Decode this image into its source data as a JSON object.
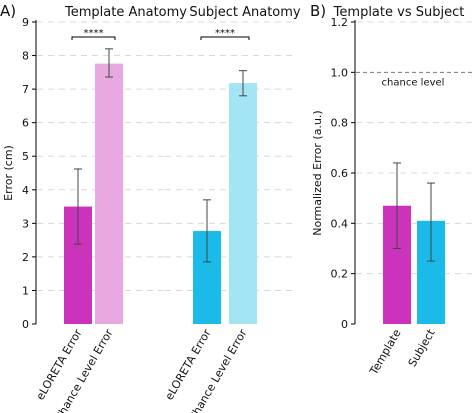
{
  "panels": {
    "a": {
      "label": "A)"
    },
    "b": {
      "label": "B)"
    }
  },
  "colors": {
    "magenta": "#cc33bb",
    "magenta_light": "#e8a8e0",
    "cyan": "#1abbe8",
    "cyan_light": "#a3e4f5",
    "grid": "#d8d8d8",
    "axis": "#000000"
  },
  "chart_data": [
    {
      "type": "bar",
      "panel": "A)",
      "title": "Template Anatomy",
      "ylabel": "Error (cm)",
      "ylim": [
        0,
        9
      ],
      "yticks": [
        0,
        1,
        2,
        3,
        4,
        5,
        6,
        7,
        8,
        9
      ],
      "grid": true,
      "categories": [
        "eLORETA Error",
        "Chance Level Error"
      ],
      "values": [
        3.5,
        7.76
      ],
      "errors": [
        [
          2.38,
          4.62
        ],
        [
          7.36,
          8.2
        ]
      ],
      "colors": [
        "#cc33bb",
        "#e8a8e0"
      ],
      "significance": "****"
    },
    {
      "type": "bar",
      "panel": "A)",
      "title": "Subject Anatomy",
      "ylabel": "",
      "ylim": [
        0,
        9
      ],
      "yticks": [],
      "grid": true,
      "categories": [
        "eLORETA Error",
        "Chance Level Error"
      ],
      "values": [
        2.77,
        7.18
      ],
      "errors": [
        [
          1.85,
          3.7
        ],
        [
          6.8,
          7.55
        ]
      ],
      "colors": [
        "#1abbe8",
        "#a3e4f5"
      ],
      "significance": "****"
    },
    {
      "type": "bar",
      "panel": "B)",
      "title": "Template vs Subject",
      "ylabel": "Normalized Error (a.u.)",
      "ylim": [
        0,
        1.2
      ],
      "yticks": [
        0,
        0.2,
        0.4,
        0.6,
        0.8,
        1.0,
        1.2
      ],
      "ytick_labels": [
        "0",
        "0.2",
        "0.4",
        "0.6",
        "0.8",
        "1.0",
        "1.2"
      ],
      "grid": true,
      "categories": [
        "Template",
        "Subject"
      ],
      "values": [
        0.47,
        0.41
      ],
      "errors": [
        [
          0.3,
          0.64
        ],
        [
          0.25,
          0.56
        ]
      ],
      "colors": [
        "#cc33bb",
        "#1abbe8"
      ],
      "reference_line": {
        "value": 1.0,
        "label": "chance level"
      }
    }
  ]
}
